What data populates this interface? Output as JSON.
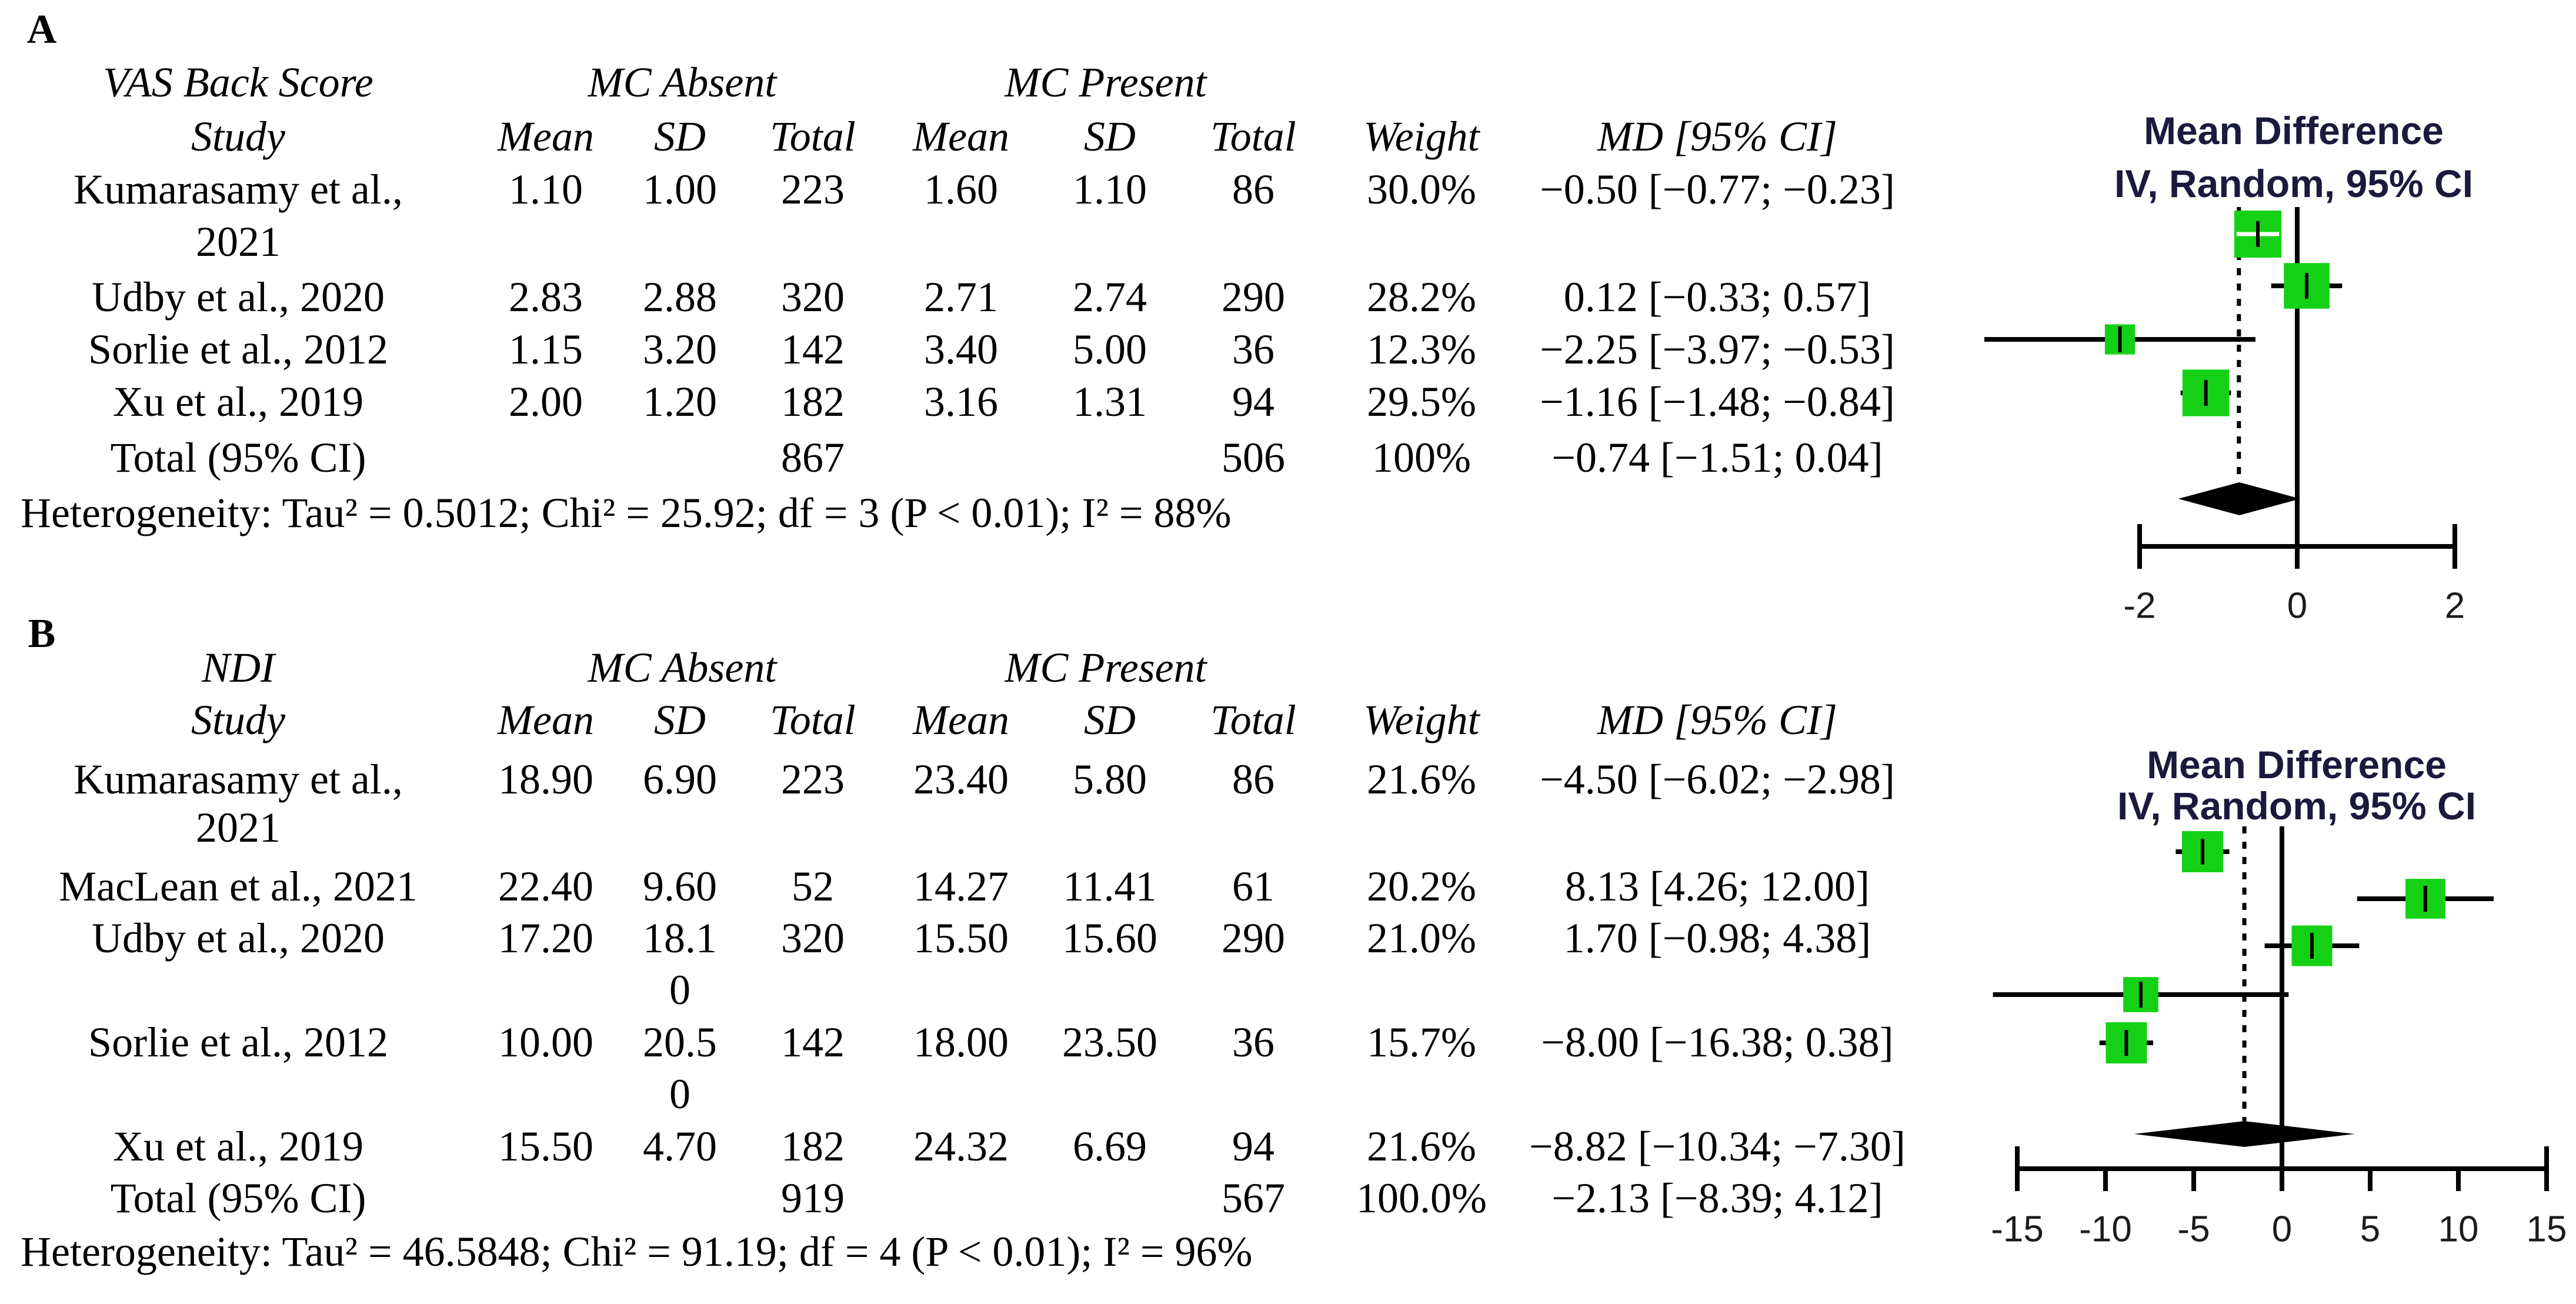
{
  "figure": {
    "panels": [
      {
        "label": "A",
        "outcome": "VAS Back Score",
        "group_headers": [
          "MC Absent",
          "MC Present"
        ],
        "columns": {
          "study": "Study",
          "mean": "Mean",
          "sd": "SD",
          "total": "Total",
          "weight": "Weight",
          "md": "MD [95% CI]"
        },
        "rows": [
          {
            "study_lines": [
              "Kumarasamy et al.,",
              "2021"
            ],
            "mean1": "1.10",
            "sd1_lines": [
              "1.00"
            ],
            "total1": "223",
            "mean2": "1.60",
            "sd2": "1.10",
            "total2": "86",
            "weight": "30.0%",
            "md": "−0.50 [−0.77; −0.23]"
          },
          {
            "study_lines": [
              "Udby et al., 2020"
            ],
            "mean1": "2.83",
            "sd1_lines": [
              "2.88"
            ],
            "total1": "320",
            "mean2": "2.71",
            "sd2": "2.74",
            "total2": "290",
            "weight": "28.2%",
            "md": "0.12 [−0.33; 0.57]"
          },
          {
            "study_lines": [
              "Sorlie et al., 2012"
            ],
            "mean1": "1.15",
            "sd1_lines": [
              "3.20"
            ],
            "total1": "142",
            "mean2": "3.40",
            "sd2": "5.00",
            "total2": "36",
            "weight": "12.3%",
            "md": "−2.25 [−3.97; −0.53]"
          },
          {
            "study_lines": [
              "Xu et al., 2019"
            ],
            "mean1": "2.00",
            "sd1_lines": [
              "1.20"
            ],
            "total1": "182",
            "mean2": "3.16",
            "sd2": "1.31",
            "total2": "94",
            "weight": "29.5%",
            "md": "−1.16 [−1.48; −0.84]"
          }
        ],
        "total_row": {
          "label": "Total (95% CI)",
          "total1": "867",
          "total2": "506",
          "weight": "100%",
          "md": "−0.74 [−1.51; 0.04]"
        },
        "heterogeneity": "Heterogeneity: Tau² = 0.5012; Chi² = 25.92; df = 3 (P < 0.01); I² = 88%"
      },
      {
        "label": "B",
        "outcome": "NDI",
        "group_headers": [
          "MC Absent",
          "MC Present"
        ],
        "columns": {
          "study": "Study",
          "mean": "Mean",
          "sd": "SD",
          "total": "Total",
          "weight": "Weight",
          "md": "MD [95% CI]"
        },
        "rows": [
          {
            "study_lines": [
              "Kumarasamy et al.,",
              "2021"
            ],
            "mean1": "18.90",
            "sd1_lines": [
              "6.90"
            ],
            "total1": "223",
            "mean2": "23.40",
            "sd2": "5.80",
            "total2": "86",
            "weight": "21.6%",
            "md": "−4.50 [−6.02; −2.98]"
          },
          {
            "study_lines": [
              "MacLean et al., 2021"
            ],
            "mean1": "22.40",
            "sd1_lines": [
              "9.60"
            ],
            "total1": "52",
            "mean2": "14.27",
            "sd2": "11.41",
            "total2": "61",
            "weight": "20.2%",
            "md": "8.13 [4.26; 12.00]"
          },
          {
            "study_lines": [
              "Udby et al., 2020"
            ],
            "mean1": "17.20",
            "sd1_lines": [
              "18.1",
              "0"
            ],
            "total1": "320",
            "mean2": "15.50",
            "sd2": "15.60",
            "total2": "290",
            "weight": "21.0%",
            "md": "1.70 [−0.98; 4.38]"
          },
          {
            "study_lines": [
              "Sorlie et al., 2012"
            ],
            "mean1": "10.00",
            "sd1_lines": [
              "20.5",
              "0"
            ],
            "total1": "142",
            "mean2": "18.00",
            "sd2": "23.50",
            "total2": "36",
            "weight": "15.7%",
            "md": "−8.00 [−16.38; 0.38]"
          },
          {
            "study_lines": [
              "Xu et al., 2019"
            ],
            "mean1": "15.50",
            "sd1_lines": [
              "4.70"
            ],
            "total1": "182",
            "mean2": "24.32",
            "sd2": "6.69",
            "total2": "94",
            "weight": "21.6%",
            "md": "−8.82 [−10.34; −7.30]"
          }
        ],
        "total_row": {
          "label": "Total (95% CI)",
          "total1": "919",
          "total2": "567",
          "weight": "100.0%",
          "md": "−2.13 [−8.39; 4.12]"
        },
        "heterogeneity": "Heterogeneity: Tau² = 46.5848; Chi² = 91.19; df = 4 (P < 0.01); I² = 96%"
      }
    ]
  },
  "colors": {
    "square_green": "#15d115",
    "diamond_black": "#000000",
    "ci_line": "#000000",
    "forest_title": "#1a1a3d",
    "axis_label": "#1c1c1c"
  },
  "chart_data": [
    {
      "type": "scatter",
      "panel": "A",
      "title": "Mean Difference",
      "subtitle": "IV, Random, 95% CI",
      "outcome": "VAS Back Score",
      "categories": [
        "Kumarasamy et al., 2021",
        "Udby et al., 2020",
        "Sorlie et al., 2012",
        "Xu et al., 2019"
      ],
      "series": [
        {
          "name": "MD",
          "values": [
            -0.5,
            0.12,
            -2.25,
            -1.16
          ]
        },
        {
          "name": "CI_low",
          "values": [
            -0.77,
            -0.33,
            -3.97,
            -1.48
          ]
        },
        {
          "name": "CI_high",
          "values": [
            -0.23,
            0.57,
            -0.53,
            -0.84
          ]
        },
        {
          "name": "Weight_pct",
          "values": [
            30.0,
            28.2,
            12.3,
            29.5
          ]
        }
      ],
      "pooled": {
        "label": "Total (95% CI)",
        "md": -0.74,
        "ci_low": -1.51,
        "ci_high": 0.04,
        "weight_pct": 100
      },
      "xlim": [
        -2,
        2
      ],
      "xticks": [
        -2,
        0,
        2
      ],
      "grid": false,
      "legend_position": "none",
      "marker_color": "#15d115",
      "diamond_color": "#000000"
    },
    {
      "type": "scatter",
      "panel": "B",
      "title": "Mean Difference",
      "subtitle": "IV, Random, 95% CI",
      "outcome": "NDI",
      "categories": [
        "Kumarasamy et al., 2021",
        "MacLean et al., 2021",
        "Udby et al., 2020",
        "Sorlie et al., 2012",
        "Xu et al., 2019"
      ],
      "series": [
        {
          "name": "MD",
          "values": [
            -4.5,
            8.13,
            1.7,
            -8.0,
            -8.82
          ]
        },
        {
          "name": "CI_low",
          "values": [
            -6.02,
            4.26,
            -0.98,
            -16.38,
            -10.34
          ]
        },
        {
          "name": "CI_high",
          "values": [
            -2.98,
            12.0,
            4.38,
            0.38,
            -7.3
          ]
        },
        {
          "name": "Weight_pct",
          "values": [
            21.6,
            20.2,
            21.0,
            15.7,
            21.6
          ]
        }
      ],
      "pooled": {
        "label": "Total (95% CI)",
        "md": -2.13,
        "ci_low": -8.39,
        "ci_high": 4.12,
        "weight_pct": 100.0
      },
      "xlim": [
        -15,
        15
      ],
      "xticks": [
        -15,
        -10,
        -5,
        0,
        5,
        10,
        15
      ],
      "grid": false,
      "legend_position": "none",
      "marker_color": "#15d115",
      "diamond_color": "#000000"
    }
  ]
}
